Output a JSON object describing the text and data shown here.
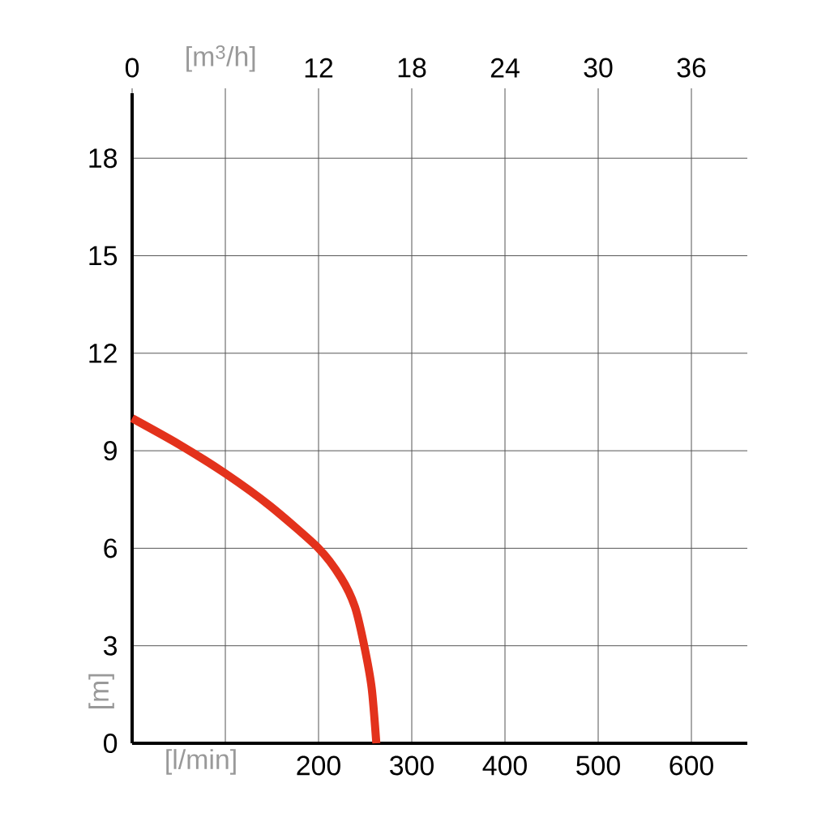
{
  "chart_data": {
    "type": "line",
    "xlabel": "[l/min]",
    "ylabel": "[m]",
    "x2label": "[m$^{3}$/h]",
    "x": [
      0,
      50,
      100,
      148,
      200,
      224,
      239,
      249,
      257,
      262
    ],
    "series": [
      {
        "color": "#e3321c",
        "values": [
          10,
          9.2,
          8.3,
          7.3,
          6.0,
          5.1,
          4.2,
          3.0,
          1.7,
          0
        ]
      }
    ],
    "xlim": [
      0,
      660
    ],
    "ylim": [
      0,
      20
    ],
    "x2lim": [
      0,
      39.6
    ],
    "xticks": [
      {
        "value": 0,
        "label": null
      },
      {
        "value": 100,
        "label": null
      },
      200,
      300,
      400,
      500,
      600
    ],
    "x2ticks": [
      0,
      {
        "value": 6,
        "label": null
      },
      12,
      18,
      24,
      30,
      36
    ],
    "yticks": [
      0,
      3,
      6,
      9,
      12,
      15,
      18
    ],
    "grid": true,
    "line_style": "solid"
  }
}
